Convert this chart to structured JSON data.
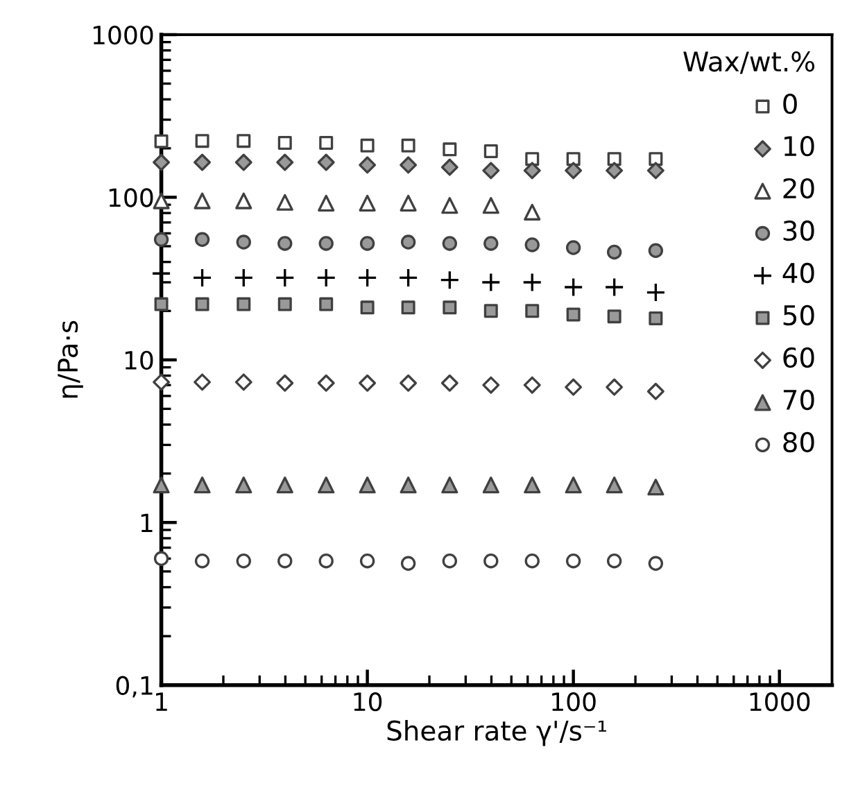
{
  "chart_data": {
    "type": "scatter",
    "xlabel": "Shear rate γ'/s⁻¹",
    "ylabel": "η/Pa·s",
    "legend_title": "Wax/wt.%",
    "log": "xy",
    "legend": "right",
    "grid": false,
    "x": [
      1,
      1.58,
      2.51,
      3.98,
      6.31,
      10,
      15.8,
      25.1,
      39.8,
      63.1,
      100,
      158,
      251
    ],
    "xlim": [
      1,
      1800
    ],
    "xticks": [
      1,
      10,
      100,
      1000
    ],
    "ylim": [
      0.1,
      1000
    ],
    "yticks": [
      {
        "value": 0.1,
        "label": "0,1"
      },
      1,
      10,
      100,
      1000
    ],
    "series": [
      {
        "name": "0",
        "marker": "square",
        "color": "#ffffff",
        "values": [
          221,
          222,
          222,
          216,
          216,
          208,
          208,
          197,
          192,
          172,
          172,
          172,
          172
        ]
      },
      {
        "name": "10",
        "marker": "diamond",
        "color": "#999999",
        "values": [
          164,
          164,
          164,
          164,
          164,
          158,
          158,
          153,
          146,
          146,
          146,
          146,
          146
        ]
      },
      {
        "name": "20",
        "marker": "triangle",
        "color": "#ffffff",
        "values": [
          95,
          95,
          95,
          93,
          92,
          92,
          92,
          89,
          89,
          81,
          null,
          null,
          null
        ]
      },
      {
        "name": "30",
        "marker": "circle",
        "color": "#999999",
        "values": [
          55,
          55,
          53,
          52,
          52,
          52,
          53,
          52,
          52,
          51,
          49,
          46,
          47
        ]
      },
      {
        "name": "40",
        "marker": "cross",
        "color": "#000000",
        "values": [
          34,
          32,
          32,
          32,
          32,
          32,
          32,
          31,
          30,
          30,
          28,
          28,
          26
        ]
      },
      {
        "name": "50",
        "marker": "square",
        "color": "#999999",
        "values": [
          22,
          22,
          22,
          22,
          22,
          21,
          21,
          21,
          20,
          20,
          19,
          18.5,
          18
        ]
      },
      {
        "name": "60",
        "marker": "diamond",
        "color": "#ffffff",
        "values": [
          7.3,
          7.3,
          7.3,
          7.2,
          7.2,
          7.2,
          7.2,
          7.2,
          7.0,
          7.0,
          6.8,
          6.8,
          6.4
        ]
      },
      {
        "name": "70",
        "marker": "triangle",
        "color": "#999999",
        "values": [
          1.7,
          1.7,
          1.7,
          1.7,
          1.7,
          1.7,
          1.7,
          1.7,
          1.7,
          1.7,
          1.7,
          1.7,
          1.65
        ]
      },
      {
        "name": "80",
        "marker": "circle",
        "color": "#ffffff",
        "values": [
          0.6,
          0.58,
          0.58,
          0.58,
          0.58,
          0.58,
          0.56,
          0.58,
          0.58,
          0.58,
          0.58,
          0.58,
          0.56
        ]
      }
    ]
  }
}
